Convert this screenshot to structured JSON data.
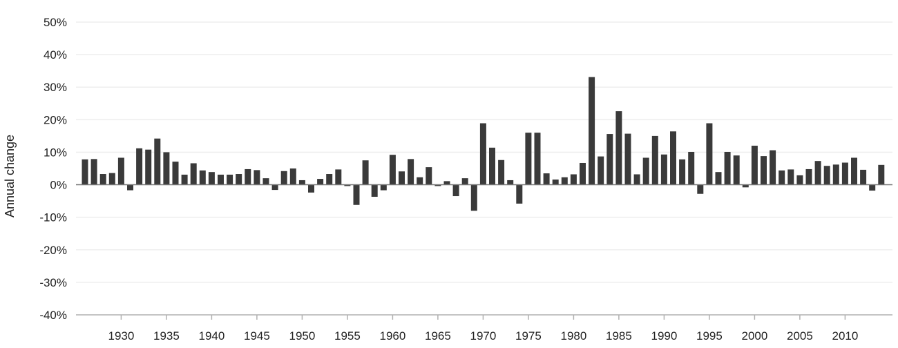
{
  "chart_data": {
    "type": "bar",
    "title": "",
    "xlabel": "",
    "ylabel": "Annual change",
    "x": [
      1926,
      1927,
      1928,
      1929,
      1930,
      1931,
      1932,
      1933,
      1934,
      1935,
      1936,
      1937,
      1938,
      1939,
      1940,
      1941,
      1942,
      1943,
      1944,
      1945,
      1946,
      1947,
      1948,
      1949,
      1950,
      1951,
      1952,
      1953,
      1954,
      1955,
      1956,
      1957,
      1958,
      1959,
      1960,
      1961,
      1962,
      1963,
      1964,
      1965,
      1966,
      1967,
      1968,
      1969,
      1970,
      1971,
      1972,
      1973,
      1974,
      1975,
      1976,
      1977,
      1978,
      1979,
      1980,
      1981,
      1982,
      1983,
      1984,
      1985,
      1986,
      1987,
      1988,
      1989,
      1990,
      1991,
      1992,
      1993,
      1994,
      1995,
      1996,
      1997,
      1998,
      1999,
      2000,
      2001,
      2002,
      2003,
      2004,
      2005,
      2006,
      2007,
      2008,
      2009,
      2010,
      2011,
      2012,
      2013,
      2014
    ],
    "values": [
      7.8,
      7.9,
      3.3,
      3.6,
      8.3,
      -1.7,
      11.2,
      10.8,
      14.2,
      10.0,
      7.1,
      3.1,
      6.6,
      4.4,
      3.9,
      3.1,
      3.1,
      3.3,
      4.8,
      4.5,
      2.0,
      -1.6,
      4.2,
      5.0,
      1.4,
      -2.4,
      1.8,
      3.3,
      4.7,
      -0.4,
      -6.2,
      7.5,
      -3.7,
      -1.7,
      9.2,
      4.1,
      7.9,
      2.3,
      5.4,
      -0.4,
      1.1,
      -3.5,
      2.0,
      -8.0,
      18.9,
      11.4,
      7.6,
      1.4,
      -5.8,
      16.0,
      16.0,
      3.5,
      1.6,
      2.3,
      3.2,
      6.7,
      33.1,
      8.7,
      15.6,
      22.6,
      15.7,
      3.2,
      8.3,
      15.0,
      9.3,
      16.4,
      7.8,
      10.1,
      -2.8,
      18.9,
      3.9,
      10.1,
      9.0,
      -0.8,
      12.0,
      8.8,
      10.6,
      4.4,
      4.7,
      2.9,
      4.8,
      7.3,
      5.8,
      6.2,
      6.8,
      8.3,
      4.6,
      -1.8,
      6.1
    ],
    "x_ticks": [
      "1930",
      "1935",
      "1940",
      "1945",
      "1950",
      "1955",
      "1960",
      "1965",
      "1970",
      "1975",
      "1980",
      "1985",
      "1990",
      "1995",
      "2000",
      "2005",
      "2010"
    ],
    "y_ticks": [
      "50%",
      "40%",
      "30%",
      "20%",
      "10%",
      "0%",
      "-10%",
      "-20%",
      "-30%",
      "-40%"
    ],
    "ylim": [
      -40,
      50
    ],
    "grid": true,
    "bar_color": "#3a3a3a",
    "grid_color": "#eeeeee",
    "axis_color": "#b0b0b0",
    "zero_line_color": "#777777"
  }
}
